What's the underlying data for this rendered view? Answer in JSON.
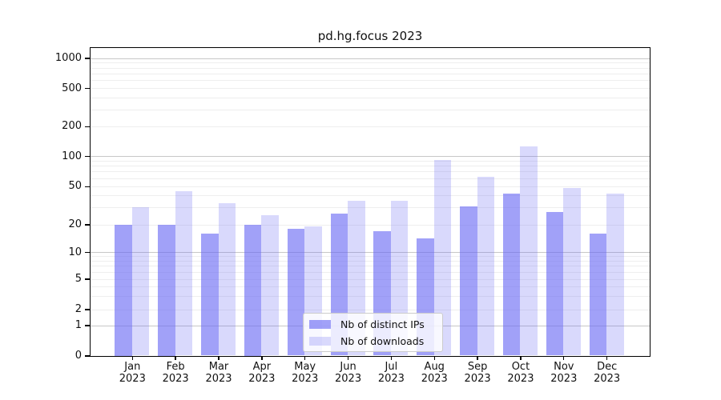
{
  "chart_data": {
    "type": "bar",
    "title": "pd.hg.focus 2023",
    "yscale": "log (symlog-like, 0 to 1000)",
    "ylim": [
      0,
      1000
    ],
    "y_ticks": [
      0,
      1,
      2,
      5,
      10,
      20,
      50,
      100,
      200,
      500,
      1000
    ],
    "x_months": [
      "Jan",
      "Feb",
      "Mar",
      "Apr",
      "May",
      "Jun",
      "Jul",
      "Aug",
      "Sep",
      "Oct",
      "Nov",
      "Dec"
    ],
    "x_year": "2023",
    "grid": true,
    "legend_position": "inside-bottom-center",
    "series": [
      {
        "name": "Nb of distinct IPs",
        "color_base": "#6767f3",
        "alpha": 0.62,
        "color_hex": "#a1a1f8",
        "values": [
          20,
          20,
          16,
          20,
          18,
          26,
          17,
          14,
          31,
          42,
          27,
          16
        ]
      },
      {
        "name": "Nb of downloads",
        "color_base": "#6767f3",
        "alpha": 0.25,
        "color_hex": "#d9d9fc",
        "values": [
          30,
          44,
          33,
          25,
          19,
          35,
          35,
          92,
          62,
          125,
          48,
          42
        ]
      }
    ],
    "colors": {
      "grid_major": "#c7c7c7",
      "grid_minor": "#eeeeee",
      "axis": "#000000",
      "legend_border": "#cccccc",
      "background": "#ffffff"
    }
  }
}
